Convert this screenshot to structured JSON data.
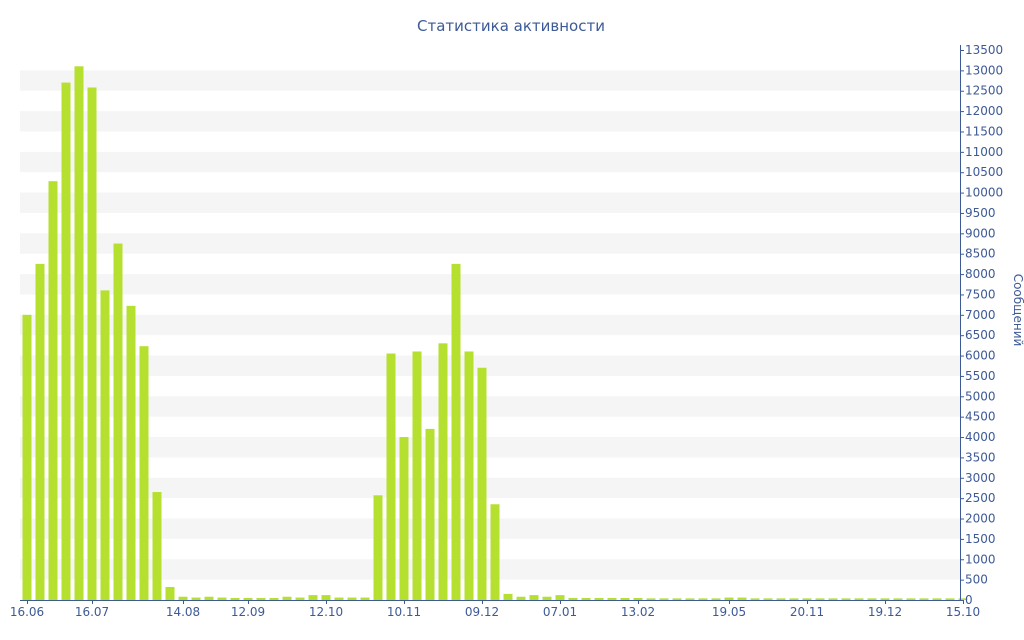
{
  "chart_data": {
    "type": "bar",
    "title": "Статистика активности",
    "ylabel": "Сообщений",
    "xlabel": "",
    "ylim": [
      0,
      13500
    ],
    "y_ticks": [
      0,
      500,
      1000,
      1500,
      2000,
      2500,
      3000,
      3500,
      4000,
      4500,
      5000,
      5500,
      6000,
      6500,
      7000,
      7500,
      8000,
      8500,
      9000,
      9500,
      10000,
      10500,
      11000,
      11500,
      12000,
      12500,
      13000,
      13500
    ],
    "y_axis_position": "right",
    "x_tick_labels": [
      {
        "label": "16.06",
        "index": 0
      },
      {
        "label": "16.07",
        "index": 5
      },
      {
        "label": "14.08",
        "index": 12
      },
      {
        "label": "12.09",
        "index": 17
      },
      {
        "label": "12.10",
        "index": 23
      },
      {
        "label": "10.11",
        "index": 29
      },
      {
        "label": "09.12",
        "index": 35
      },
      {
        "label": "07.01",
        "index": 41
      },
      {
        "label": "13.02",
        "index": 47
      },
      {
        "label": "19.05",
        "index": 54
      },
      {
        "label": "20.11",
        "index": 60
      },
      {
        "label": "19.12",
        "index": 66
      },
      {
        "label": "15.10",
        "index": 72
      }
    ],
    "values": [
      7000,
      8250,
      10280,
      12700,
      13100,
      12580,
      7600,
      8750,
      7220,
      6230,
      2650,
      320,
      80,
      60,
      80,
      60,
      50,
      50,
      50,
      50,
      80,
      60,
      120,
      120,
      60,
      60,
      60,
      2570,
      6050,
      4000,
      6100,
      4200,
      6300,
      8250,
      6100,
      5700,
      2350,
      150,
      80,
      120,
      80,
      120,
      50,
      50,
      50,
      50,
      50,
      50,
      40,
      40,
      40,
      40,
      40,
      40,
      60,
      60,
      40,
      40,
      40,
      40,
      40,
      40,
      40,
      40,
      40,
      40,
      40,
      40,
      40,
      40,
      40,
      40,
      40
    ],
    "bar_color": "#b5e02f",
    "band_color": "#f5f5f5",
    "text_color": "#3d5a96",
    "grid": "alternating-bands",
    "legend": "none"
  }
}
